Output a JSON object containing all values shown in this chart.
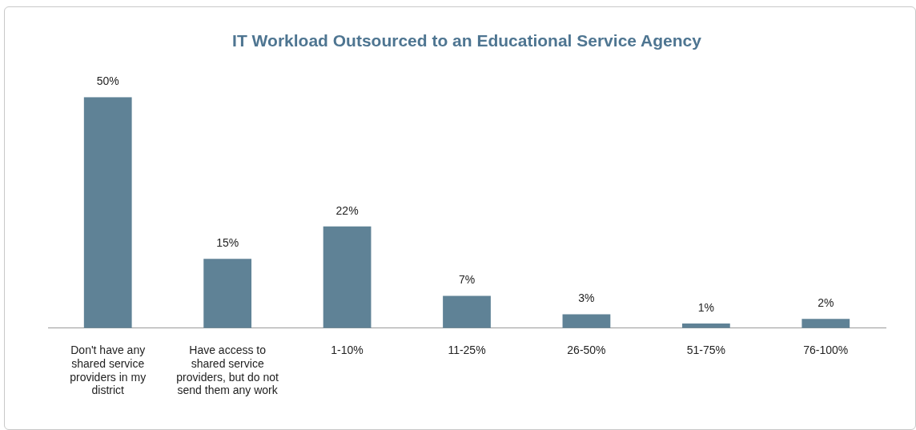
{
  "chart_data": {
    "type": "bar",
    "title": "IT Workload Outsourced to an Educational Service Agency",
    "categories": [
      "Don't have any shared service providers in my district",
      "Have access to shared service providers, but do not send them any work",
      "1-10%",
      "11-25%",
      "26-50%",
      "51-75%",
      "76-100%"
    ],
    "values": [
      50,
      15,
      22,
      7,
      3,
      1,
      2
    ],
    "value_labels": [
      "50%",
      "15%",
      "22%",
      "7%",
      "3%",
      "1%",
      "2%"
    ],
    "color": "#5f8296",
    "grid": false,
    "legend": false
  }
}
